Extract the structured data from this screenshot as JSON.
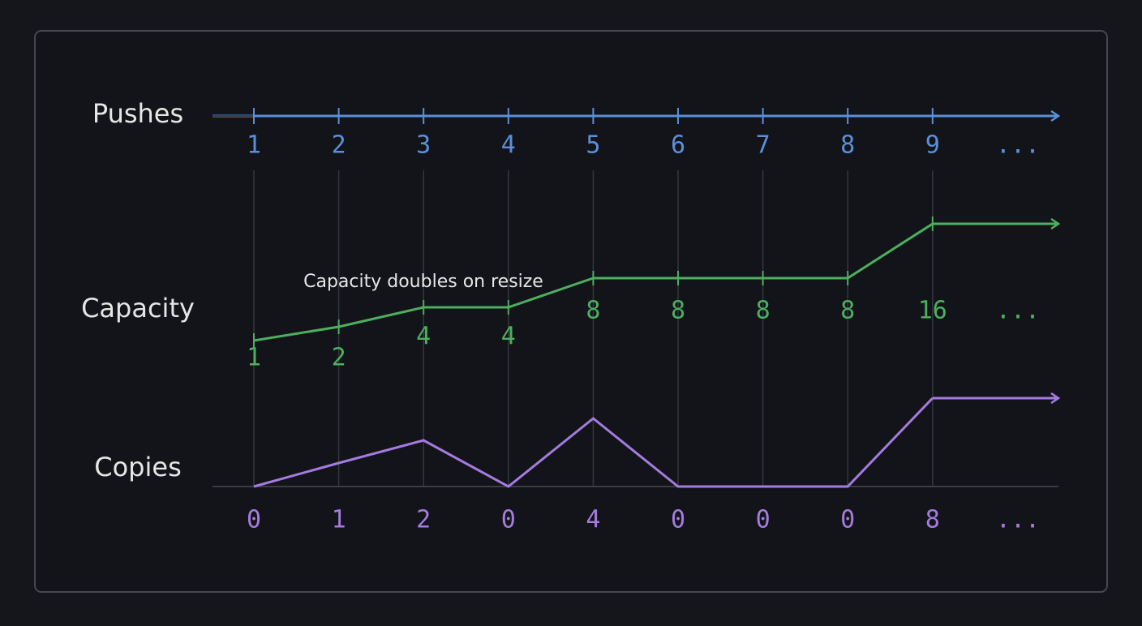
{
  "annotation": "Capacity doubles on resize",
  "rows": [
    {
      "label": "Pushes",
      "values": [
        1,
        2,
        3,
        4,
        5,
        6,
        7,
        8,
        9
      ],
      "more": "..."
    },
    {
      "label": "Capacity",
      "values": [
        1,
        2,
        4,
        4,
        8,
        8,
        8,
        8,
        16
      ],
      "more": "..."
    },
    {
      "label": "Copies",
      "values": [
        0,
        1,
        2,
        0,
        4,
        0,
        0,
        0,
        8
      ],
      "more": "..."
    }
  ]
}
